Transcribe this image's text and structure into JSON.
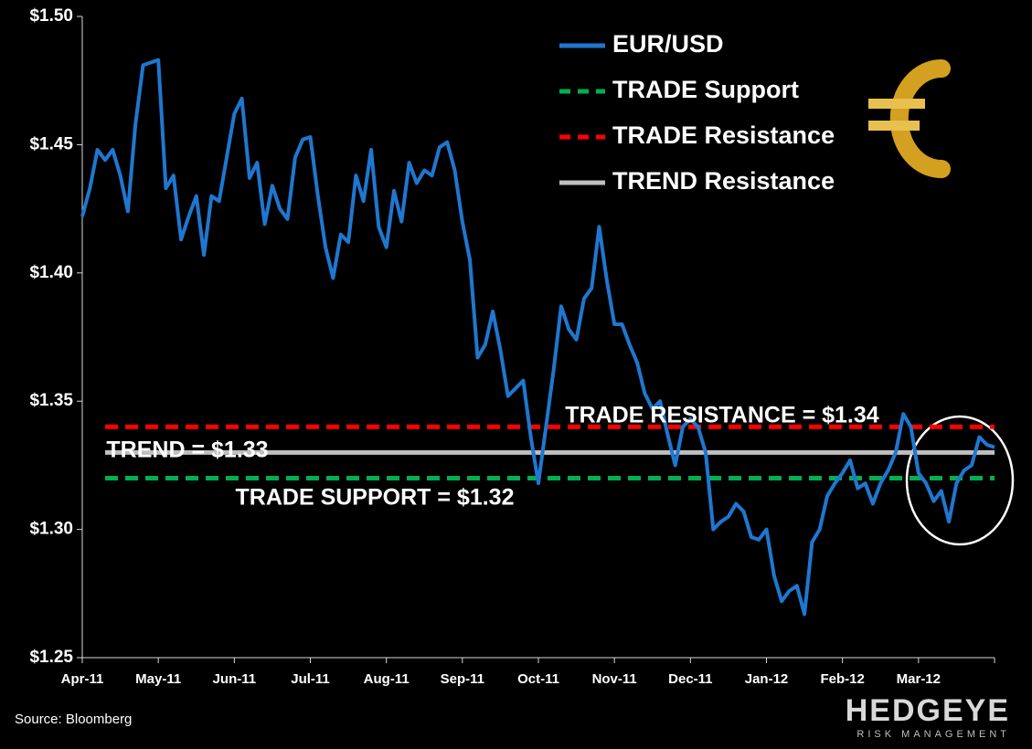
{
  "chart_data": {
    "type": "line",
    "categories": [
      "Apr-11",
      null,
      null,
      null,
      null,
      null,
      null,
      null,
      null,
      null,
      "May-11",
      null,
      null,
      null,
      null,
      null,
      null,
      null,
      null,
      null,
      "Jun-11",
      null,
      null,
      null,
      null,
      null,
      null,
      null,
      null,
      null,
      "Jul-11",
      null,
      null,
      null,
      null,
      null,
      null,
      null,
      null,
      null,
      "Aug-11",
      null,
      null,
      null,
      null,
      null,
      null,
      null,
      null,
      null,
      "Sep-11",
      null,
      null,
      null,
      null,
      null,
      null,
      null,
      null,
      null,
      "Oct-11",
      null,
      null,
      null,
      null,
      null,
      null,
      null,
      null,
      null,
      "Nov-11",
      null,
      null,
      null,
      null,
      null,
      null,
      null,
      null,
      null,
      "Dec-11",
      null,
      null,
      null,
      null,
      null,
      null,
      null,
      null,
      null,
      "Jan-12",
      null,
      null,
      null,
      null,
      null,
      null,
      null,
      null,
      null,
      "Feb-12",
      null,
      null,
      null,
      null,
      null,
      null,
      null,
      null,
      null,
      "Mar-12",
      null,
      null,
      null,
      null,
      null,
      null,
      null,
      null,
      null,
      null
    ],
    "series": [
      {
        "name": "EUR/USD",
        "color": "#1f77d0",
        "values": [
          1.422,
          1.433,
          1.448,
          1.444,
          1.448,
          1.438,
          1.424,
          1.458,
          1.481,
          1.482,
          1.483,
          1.433,
          1.438,
          1.413,
          1.422,
          1.43,
          1.407,
          1.43,
          1.428,
          1.445,
          1.462,
          1.468,
          1.437,
          1.443,
          1.419,
          1.434,
          1.425,
          1.421,
          1.445,
          1.452,
          1.453,
          1.43,
          1.41,
          1.398,
          1.415,
          1.412,
          1.438,
          1.428,
          1.448,
          1.418,
          1.41,
          1.432,
          1.42,
          1.443,
          1.435,
          1.44,
          1.438,
          1.449,
          1.451,
          1.44,
          1.42,
          1.405,
          1.367,
          1.372,
          1.385,
          1.37,
          1.352,
          1.355,
          1.358,
          1.336,
          1.318,
          1.34,
          1.362,
          1.387,
          1.378,
          1.374,
          1.39,
          1.394,
          1.418,
          1.397,
          1.38,
          1.38,
          1.372,
          1.365,
          1.353,
          1.347,
          1.35,
          1.337,
          1.325,
          1.34,
          1.343,
          1.34,
          1.33,
          1.3,
          1.303,
          1.305,
          1.31,
          1.307,
          1.297,
          1.296,
          1.3,
          1.282,
          1.272,
          1.276,
          1.278,
          1.267,
          1.295,
          1.3,
          1.313,
          1.318,
          1.322,
          1.327,
          1.316,
          1.318,
          1.31,
          1.318,
          1.323,
          1.33,
          1.345,
          1.34,
          1.322,
          1.318,
          1.311,
          1.315,
          1.303,
          1.318,
          1.323,
          1.325,
          1.336,
          1.333,
          1.332
        ]
      }
    ],
    "reference_lines": [
      {
        "name": "TRADE Support",
        "value": 1.32,
        "color": "#00b050",
        "dash": true
      },
      {
        "name": "TRADE Resistance",
        "value": 1.34,
        "color": "#ff0000",
        "dash": true
      },
      {
        "name": "TREND Resistance",
        "value": 1.33,
        "color": "#bfbfbf",
        "dash": false
      }
    ],
    "annotations": [
      "TRADE RESISTANCE = $1.34",
      "TREND = $1.33",
      "TRADE SUPPORT = $1.32"
    ],
    "ylim": [
      1.25,
      1.5
    ],
    "yticks": [
      {
        "value": 1.25,
        "label": "$1.25"
      },
      {
        "value": 1.3,
        "label": "$1.30"
      },
      {
        "value": 1.35,
        "label": "$1.35"
      },
      {
        "value": 1.4,
        "label": "$1.40"
      },
      {
        "value": 1.45,
        "label": "$1.45"
      },
      {
        "value": 1.5,
        "label": "$1.50"
      }
    ],
    "source": "Source: Bloomberg",
    "logo": {
      "name": "HEDGEYE",
      "tagline": "RISK MANAGEMENT"
    }
  }
}
